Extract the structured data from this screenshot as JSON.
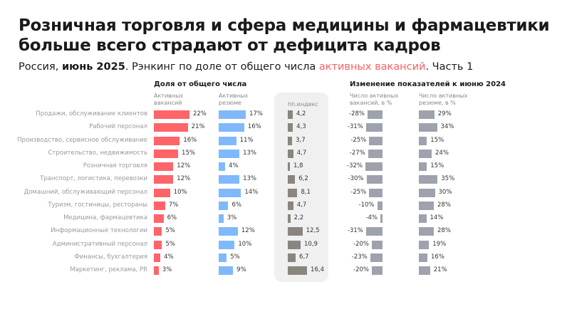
{
  "title_line1": "Розничная торговля и сфера медицины и фармацевтики",
  "title_line2": "больше всего страдают от дефицита кадров",
  "subtitle": {
    "pre": "Россия, ",
    "bold": "июнь 2025",
    "mid": ". Рэнкинг по доле от общего числа ",
    "highlight": "активных вакансий",
    "post": ". Часть 1"
  },
  "colors": {
    "vacancies": "#ff6469",
    "resumes": "#7fb9fb",
    "hh_index": "#8a857f",
    "change": "#9da2ad",
    "highlight": "#ff5f63"
  },
  "chart_data": {
    "type": "bar",
    "group1_title": "Доля от общего числа",
    "group2_title": "Изменение показателей к июню 2024",
    "columns": {
      "vacancies": "Активных вакансий",
      "resumes": "Активных резюме",
      "hh_index": "hh.индекс",
      "vac_change": "Число активных вакансий, в %",
      "res_change": "Число активных резюме, в %"
    },
    "categories": [
      "Продажи, обслуживание клиентов",
      "Рабочий персонал",
      "Производство, сервисное обслуживание",
      "Строительство, недвижимость",
      "Розничная торговля",
      "Транспорт, логистика, перевозки",
      "Домашний, обслуживающий персонал",
      "Туризм, гостиницы, рестораны",
      "Медицина, фармацевтика",
      "Информационные технологии",
      "Административный персонал",
      "Финансы, бухгалтерия",
      "Маркетинг, реклама, PR"
    ],
    "vacancies": [
      22,
      21,
      16,
      15,
      12,
      12,
      10,
      7,
      6,
      5,
      5,
      4,
      3
    ],
    "resumes": [
      17,
      16,
      11,
      13,
      4,
      13,
      14,
      6,
      3,
      12,
      10,
      5,
      9
    ],
    "hh_index": [
      "4,2",
      "4,3",
      "3,7",
      "4,7",
      "1,8",
      "6,2",
      "8,1",
      "4,7",
      "2,2",
      "12,5",
      "10,9",
      "6,7",
      "16,4"
    ],
    "vac_change": [
      -28,
      -31,
      -25,
      -27,
      -32,
      -30,
      -25,
      -10,
      -4,
      -31,
      -20,
      -23,
      -20
    ],
    "res_change": [
      29,
      34,
      15,
      24,
      15,
      35,
      30,
      28,
      14,
      28,
      19,
      16,
      21
    ]
  }
}
